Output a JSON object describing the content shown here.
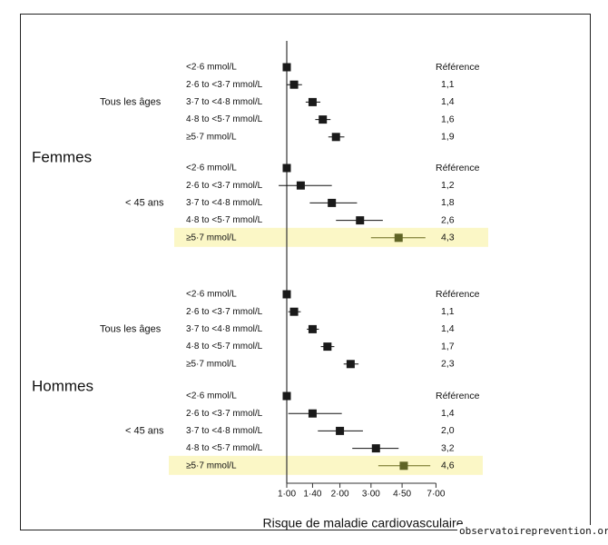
{
  "watermark": "observatoireprevention.org",
  "chart_data": {
    "type": "forest",
    "xlabel": "Risque de maladie cardiovasculaire",
    "xscale": "log",
    "xticks": [
      "1·00",
      "1·40",
      "2·00",
      "3·00",
      "4·50",
      "7·00"
    ],
    "tick_values": [
      1.0,
      1.4,
      2.0,
      3.0,
      4.5,
      7.0
    ],
    "reference_line": 1.0,
    "highlight_color": "#fbf7c6",
    "groups": [
      {
        "sex": "Femmes",
        "subgroups": [
          {
            "label": "Tous les âges",
            "rows": [
              {
                "category": "<2·6 mmol/L",
                "or_text": "Référence",
                "or": 1.0,
                "lo": 1.0,
                "hi": 1.0,
                "highlight": false
              },
              {
                "category": "2·6 to <3·7 mmol/L",
                "or_text": "1,1",
                "or": 1.1,
                "lo": 1.0,
                "hi": 1.22,
                "highlight": false
              },
              {
                "category": "3·7 to <4·8 mmol/L",
                "or_text": "1,4",
                "or": 1.4,
                "lo": 1.28,
                "hi": 1.55,
                "highlight": false
              },
              {
                "category": "4·8 to <5·7 mmol/L",
                "or_text": "1,6",
                "or": 1.6,
                "lo": 1.45,
                "hi": 1.77,
                "highlight": false
              },
              {
                "category": "≥5·7 mmol/L",
                "or_text": "1,9",
                "or": 1.9,
                "lo": 1.72,
                "hi": 2.12,
                "highlight": false
              }
            ]
          },
          {
            "label": "< 45 ans",
            "rows": [
              {
                "category": "<2·6 mmol/L",
                "or_text": "Référence",
                "or": 1.0,
                "lo": 1.0,
                "hi": 1.0,
                "highlight": false
              },
              {
                "category": "2·6 to <3·7 mmol/L",
                "or_text": "1,2",
                "or": 1.2,
                "lo": 0.9,
                "hi": 1.8,
                "highlight": false
              },
              {
                "category": "3·7 to <4·8 mmol/L",
                "or_text": "1,8",
                "or": 1.8,
                "lo": 1.35,
                "hi": 2.5,
                "highlight": false
              },
              {
                "category": "4·8 to <5·7 mmol/L",
                "or_text": "2,6",
                "or": 2.6,
                "lo": 1.9,
                "hi": 3.5,
                "highlight": false
              },
              {
                "category": "≥5·7 mmol/L",
                "or_text": "4,3",
                "or": 4.3,
                "lo": 3.0,
                "hi": 6.1,
                "highlight": true
              }
            ]
          }
        ]
      },
      {
        "sex": "Hommes",
        "subgroups": [
          {
            "label": "Tous les âges",
            "rows": [
              {
                "category": "<2·6 mmol/L",
                "or_text": "Référence",
                "or": 1.0,
                "lo": 1.0,
                "hi": 1.0,
                "highlight": false
              },
              {
                "category": "2·6 to <3·7 mmol/L",
                "or_text": "1,1",
                "or": 1.1,
                "lo": 1.02,
                "hi": 1.2,
                "highlight": false
              },
              {
                "category": "3·7 to <4·8 mmol/L",
                "or_text": "1,4",
                "or": 1.4,
                "lo": 1.3,
                "hi": 1.52,
                "highlight": false
              },
              {
                "category": "4·8 to <5·7 mmol/L",
                "or_text": "1,7",
                "or": 1.7,
                "lo": 1.56,
                "hi": 1.86,
                "highlight": false
              },
              {
                "category": "≥5·7 mmol/L",
                "or_text": "2,3",
                "or": 2.3,
                "lo": 2.1,
                "hi": 2.55,
                "highlight": false
              }
            ]
          },
          {
            "label": "< 45 ans",
            "rows": [
              {
                "category": "<2·6 mmol/L",
                "or_text": "Référence",
                "or": 1.0,
                "lo": 1.0,
                "hi": 1.0,
                "highlight": false
              },
              {
                "category": "2·6 to <3·7 mmol/L",
                "or_text": "1,4",
                "or": 1.4,
                "lo": 1.02,
                "hi": 2.05,
                "highlight": false
              },
              {
                "category": "3·7 to <4·8 mmol/L",
                "or_text": "2,0",
                "or": 2.0,
                "lo": 1.5,
                "hi": 2.7,
                "highlight": false
              },
              {
                "category": "4·8 to <5·7 mmol/L",
                "or_text": "3,2",
                "or": 3.2,
                "lo": 2.35,
                "hi": 4.3,
                "highlight": false
              },
              {
                "category": "≥5·7 mmol/L",
                "or_text": "4,6",
                "or": 4.6,
                "lo": 3.3,
                "hi": 6.5,
                "highlight": true
              }
            ]
          }
        ]
      }
    ]
  }
}
